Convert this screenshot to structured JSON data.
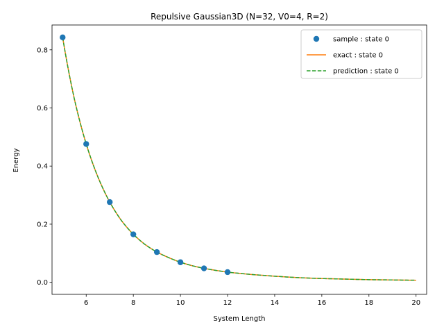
{
  "chart_data": {
    "type": "line",
    "title": "Repulsive Gaussian3D (N=32, V0=4, R=2)",
    "xlabel": "System Length",
    "ylabel": "Energy",
    "xlim": [
      4.55,
      20.45
    ],
    "ylim": [
      -0.0415,
      0.8855
    ],
    "xticks": [
      6,
      8,
      10,
      12,
      14,
      16,
      18,
      20
    ],
    "xtick_labels": [
      "6",
      "8",
      "10",
      "12",
      "14",
      "16",
      "18",
      "20"
    ],
    "yticks": [
      0.0,
      0.2,
      0.4,
      0.6,
      0.8
    ],
    "ytick_labels": [
      "0.0",
      "0.2",
      "0.4",
      "0.6",
      "0.8"
    ],
    "grid": false,
    "legend_position": "top-right",
    "series": [
      {
        "name": "sample : state 0",
        "style": "markers",
        "color": "#1f77b4",
        "x": [
          5,
          6,
          7,
          8,
          9,
          10,
          11,
          12
        ],
        "y": [
          0.843,
          0.476,
          0.276,
          0.165,
          0.104,
          0.069,
          0.048,
          0.035
        ]
      },
      {
        "name": "exact : state 0",
        "style": "solid",
        "color": "#ff7f0e",
        "x": [
          5,
          5.5,
          6,
          6.5,
          7,
          7.5,
          8,
          8.5,
          9,
          9.5,
          10,
          10.5,
          11,
          11.5,
          12,
          13,
          14,
          15,
          16,
          17,
          18,
          19,
          20
        ],
        "y": [
          0.843,
          0.63,
          0.476,
          0.362,
          0.276,
          0.212,
          0.165,
          0.13,
          0.104,
          0.085,
          0.069,
          0.057,
          0.048,
          0.041,
          0.035,
          0.027,
          0.021,
          0.016,
          0.013,
          0.011,
          0.009,
          0.008,
          0.007
        ]
      },
      {
        "name": "prediction : state 0",
        "style": "dashed",
        "color": "#2ca02c",
        "x": [
          5,
          5.5,
          6,
          6.5,
          7,
          7.5,
          8,
          8.5,
          9,
          9.5,
          10,
          10.5,
          11,
          11.5,
          12,
          13,
          14,
          15,
          16,
          17,
          18,
          19,
          20
        ],
        "y": [
          0.843,
          0.63,
          0.476,
          0.362,
          0.276,
          0.212,
          0.165,
          0.13,
          0.104,
          0.085,
          0.069,
          0.057,
          0.048,
          0.041,
          0.035,
          0.027,
          0.021,
          0.016,
          0.013,
          0.011,
          0.009,
          0.008,
          0.007
        ]
      }
    ]
  }
}
